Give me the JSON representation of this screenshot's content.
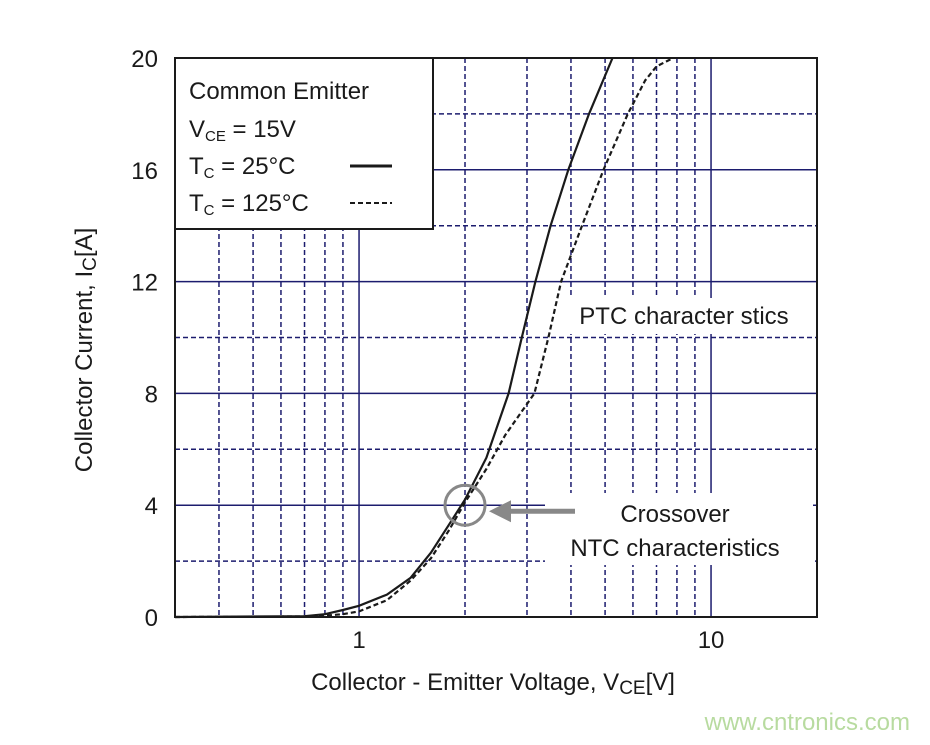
{
  "chart_data": {
    "type": "line",
    "x_label": [
      "Collector - Emitter Voltage, V",
      "CE",
      "[V]"
    ],
    "y_label": [
      "Collector Current, I",
      "C",
      "[A]"
    ],
    "legend_title": "Common Emitter",
    "legend_condition": [
      "V",
      "CE",
      " = 15V"
    ],
    "xscale": "log",
    "xlim": [
      0.3,
      20
    ],
    "ylim": [
      0,
      20
    ],
    "xticks": [
      1,
      10
    ],
    "yticks": [
      0,
      4,
      8,
      12,
      16,
      20
    ],
    "x_minor_grid": [
      0.4,
      0.5,
      0.6,
      0.7,
      0.8,
      0.9,
      2,
      3,
      4,
      5,
      6,
      7,
      8,
      9
    ],
    "y_minor_grid": [
      2,
      6,
      10,
      14,
      18
    ],
    "grid": true,
    "grid_color": "#1c1c6e",
    "series": [
      {
        "name": [
          "T",
          "C",
          " = 25°C"
        ],
        "color": "#1a1a1a",
        "dash": false,
        "x": [
          0.3,
          0.7,
          0.8,
          0.9,
          1.0,
          1.2,
          1.4,
          1.6,
          1.8,
          2.0,
          2.3,
          2.66,
          2.9,
          3.17,
          3.5,
          3.93,
          4.5,
          5.25
        ],
        "values": [
          0,
          0.03,
          0.1,
          0.25,
          0.4,
          0.8,
          1.4,
          2.3,
          3.3,
          4.2,
          5.7,
          8,
          10,
          12,
          14,
          16,
          18,
          20
        ]
      },
      {
        "name": [
          "T",
          "C",
          " = 125°C"
        ],
        "color": "#1a1a1a",
        "dash": true,
        "x": [
          0.3,
          0.75,
          0.9,
          1.0,
          1.2,
          1.4,
          1.6,
          1.8,
          2.0,
          2.3,
          2.6,
          3.15,
          3.45,
          3.75,
          4.3,
          4.95,
          5.8,
          6.5,
          7.0,
          7.8
        ],
        "values": [
          0,
          0.02,
          0.1,
          0.2,
          0.6,
          1.3,
          2.1,
          3.1,
          4.1,
          5.3,
          6.5,
          8,
          10,
          12,
          14,
          16,
          18,
          19.2,
          19.7,
          20
        ]
      }
    ],
    "annotations": [
      {
        "text": [
          "PTC character stics"
        ]
      },
      {
        "text": [
          "Crossover",
          "NTC characteristics"
        ],
        "x": 2,
        "y": 4
      }
    ],
    "watermark": "www.cntronics.com"
  }
}
